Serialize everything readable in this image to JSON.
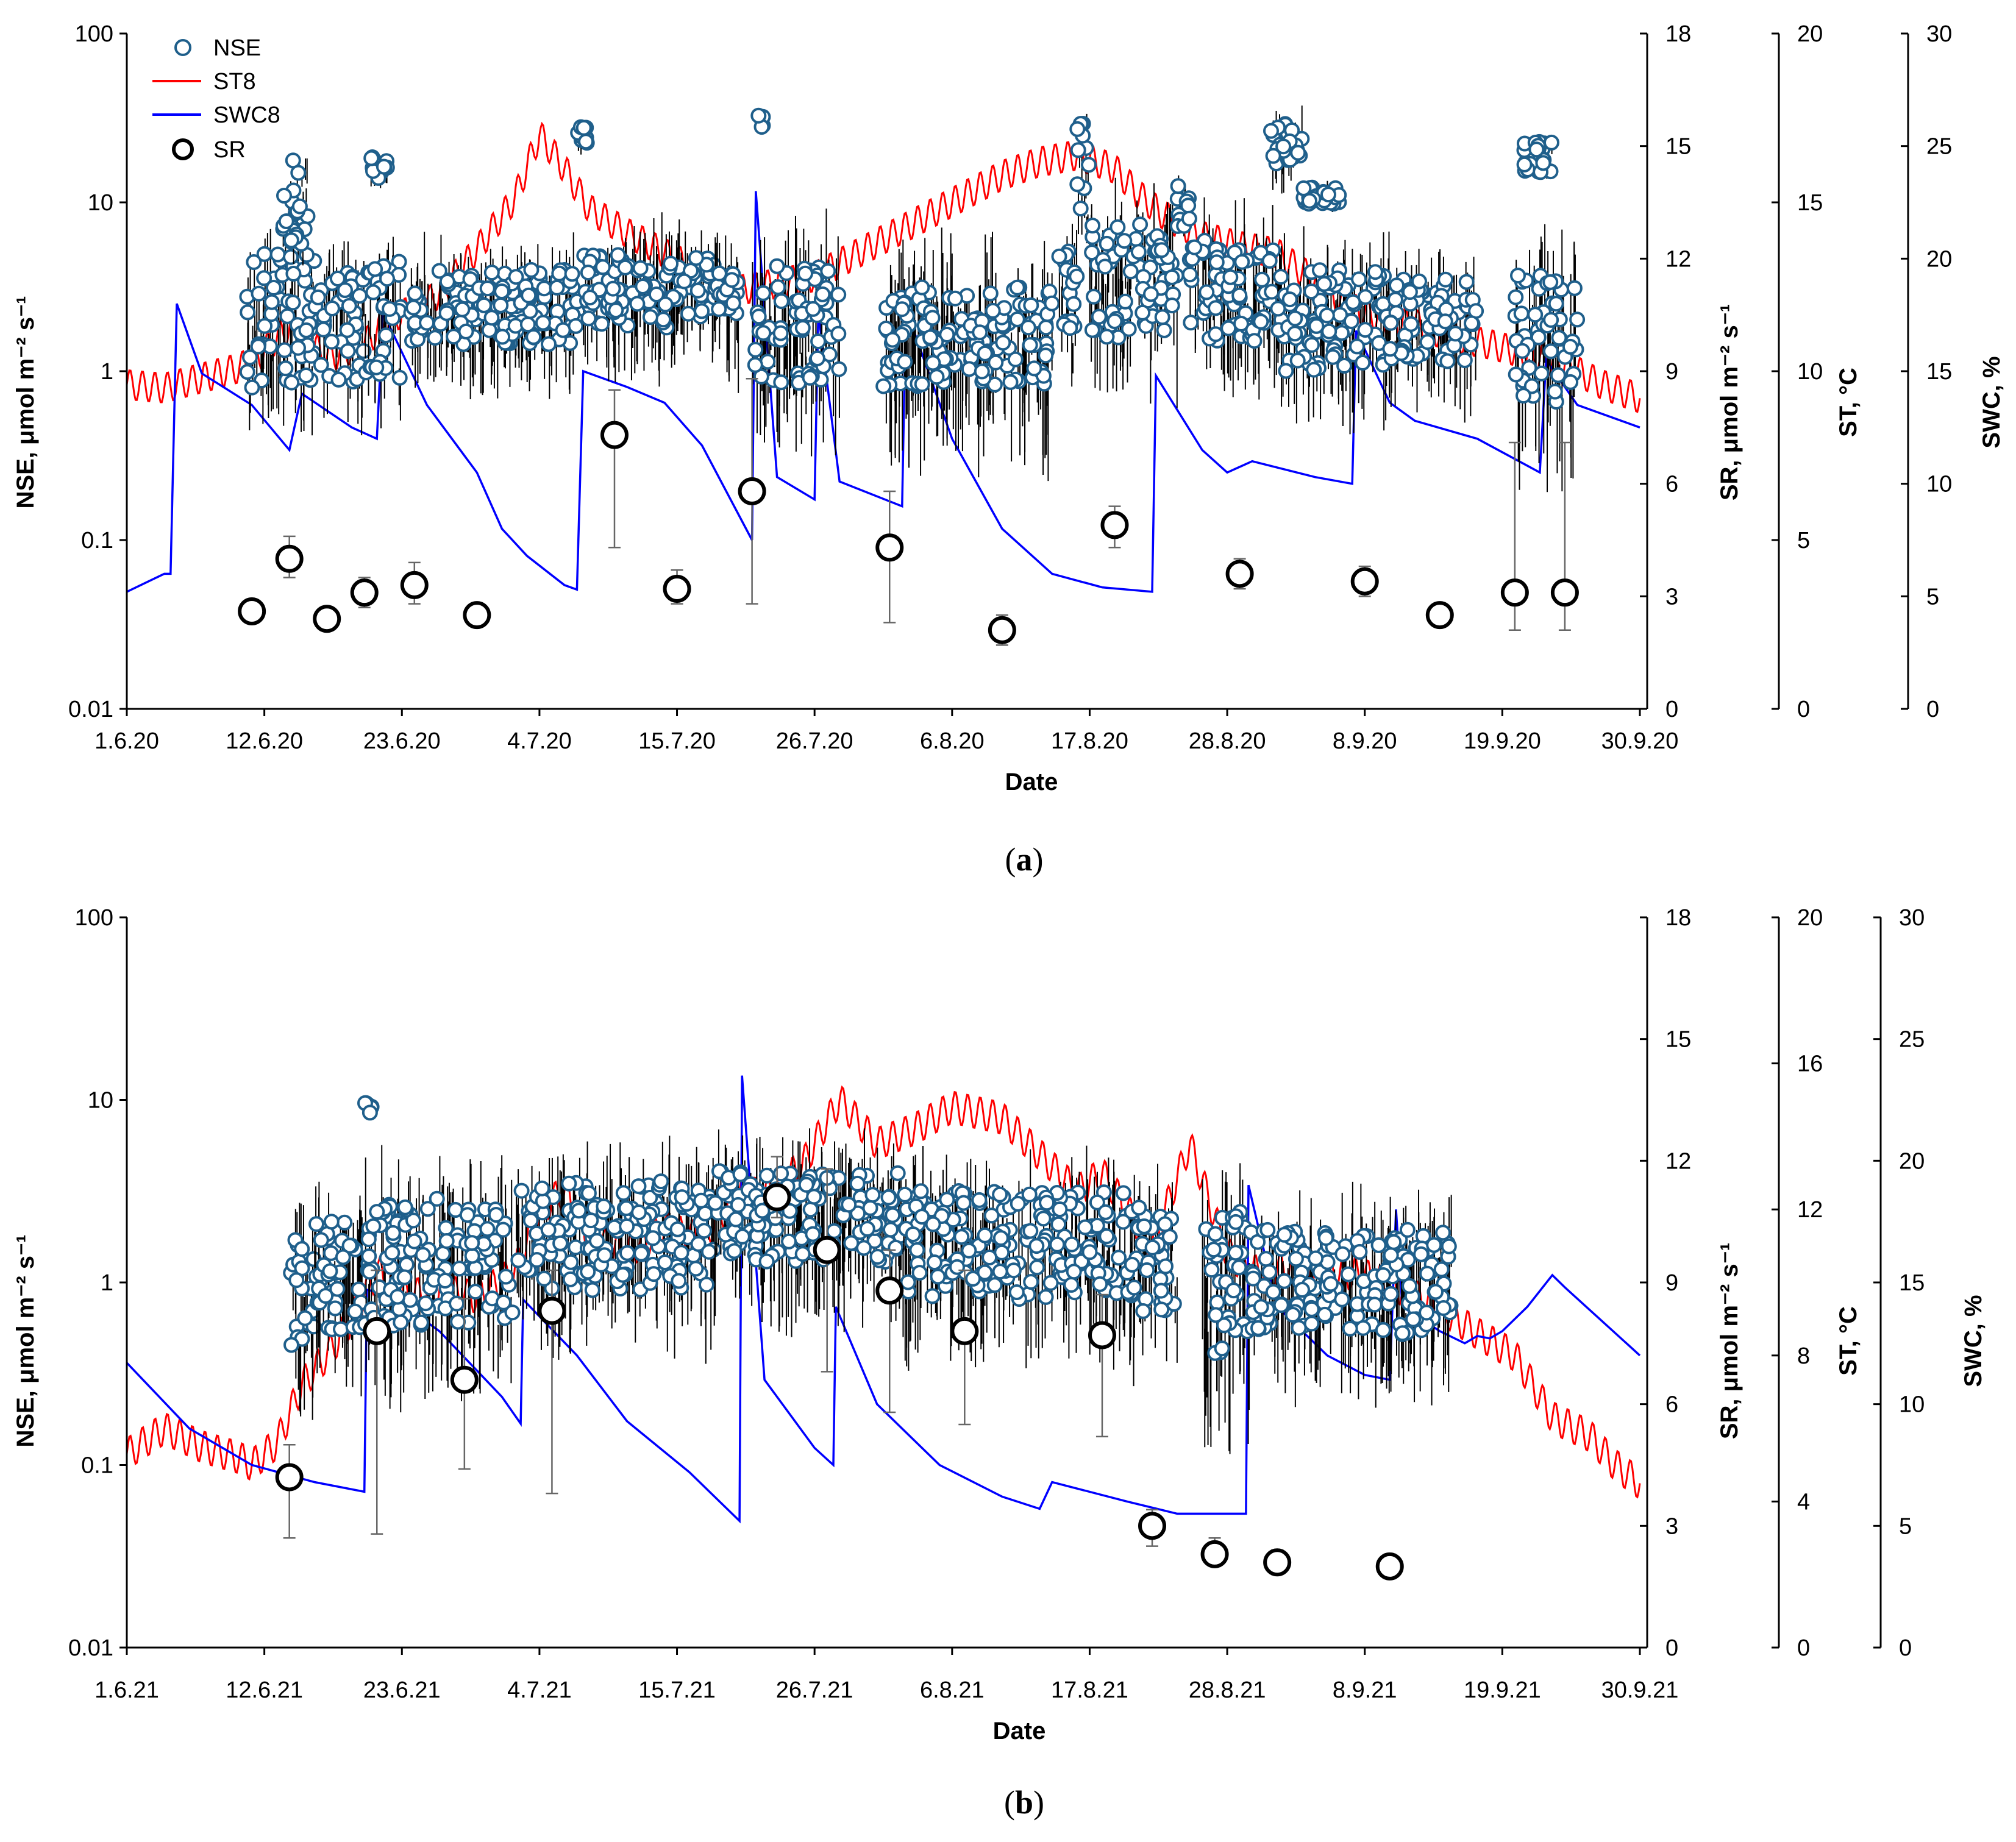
{
  "legend": {
    "nse": "NSE",
    "st": "ST8",
    "swc": "SWC8",
    "sr": "SR"
  },
  "colors": {
    "nse": "#1f5f8b",
    "st": "#ff0000",
    "swc": "#0000ff",
    "sr": "#000000"
  },
  "chart_data": [
    {
      "type": "scatter",
      "panel": "a",
      "caption": "a",
      "xlabel": "Date",
      "ylabel_left": "NSE, μmol m⁻² s⁻¹",
      "ylabel_sr": "SR, μmol m⁻² s⁻¹",
      "ylabel_st": "ST, °C",
      "ylabel_swc": "SWC, %",
      "x_ticks": [
        "1.6.20",
        "12.6.20",
        "23.6.20",
        "4.7.20",
        "15.7.20",
        "26.7.20",
        "6.8.20",
        "17.8.20",
        "28.8.20",
        "8.9.20",
        "19.9.20",
        "30.9.20"
      ],
      "xlim_days": [
        0,
        121
      ],
      "y_left": {
        "scale": "log",
        "lim": [
          0.01,
          100
        ],
        "ticks": [
          "0.01",
          "0.1",
          "1",
          "10",
          "100"
        ]
      },
      "y_sr": {
        "lim": [
          0,
          18
        ],
        "ticks": [
          "0",
          "3",
          "6",
          "9",
          "12",
          "15",
          "18"
        ]
      },
      "y_st": {
        "lim": [
          0,
          20
        ],
        "ticks": [
          "0",
          "5",
          "10",
          "15",
          "20"
        ]
      },
      "y_swc": {
        "lim": [
          0,
          30
        ],
        "ticks": [
          "0",
          "5",
          "10",
          "15",
          "20",
          "25",
          "30"
        ]
      },
      "sr": {
        "days": [
          10,
          13,
          16,
          19,
          23,
          28,
          39,
          44,
          50,
          61,
          70,
          79,
          89,
          99,
          105,
          111,
          115
        ],
        "values": [
          2.6,
          4.0,
          2.4,
          3.1,
          3.3,
          2.5,
          7.3,
          3.2,
          5.8,
          4.3,
          2.1,
          4.9,
          3.6,
          3.4,
          2.5,
          3.1,
          3.1
        ],
        "err_low": [
          0.3,
          0.5,
          0.3,
          0.4,
          0.5,
          0.3,
          3.0,
          0.4,
          3.0,
          2.0,
          0.4,
          0.6,
          0.4,
          0.4,
          0.3,
          1.0,
          1.0
        ],
        "err_high": [
          0.3,
          0.6,
          0.3,
          0.4,
          0.6,
          0.3,
          1.2,
          0.5,
          3.0,
          1.5,
          0.4,
          0.5,
          0.4,
          0.4,
          0.3,
          4.0,
          4.0
        ]
      },
      "st": {
        "days": [
          0,
          3,
          6,
          9,
          10,
          13,
          16,
          19,
          21,
          23,
          25,
          28,
          31,
          33,
          35,
          37,
          40,
          43,
          46,
          49,
          52,
          55,
          58,
          61,
          64,
          67,
          70,
          73,
          76,
          79,
          81,
          83,
          86,
          89,
          92,
          95,
          97,
          100,
          103,
          106,
          109,
          112,
          115,
          118,
          121
        ],
        "values": [
          9.6,
          9.5,
          9.8,
          10.1,
          10.3,
          11.3,
          10.4,
          10.8,
          11.6,
          11.8,
          12.3,
          13.6,
          15.1,
          17.0,
          16.0,
          14.8,
          14.1,
          13.5,
          12.9,
          12.4,
          12.6,
          12.8,
          13.4,
          14.0,
          14.6,
          15.2,
          15.8,
          16.2,
          16.4,
          16.0,
          15.2,
          14.6,
          14.0,
          13.7,
          13.5,
          12.7,
          12.0,
          11.6,
          11.4,
          11.0,
          10.8,
          10.5,
          10.2,
          9.6,
          9.2
        ]
      },
      "swc": {
        "days": [
          0,
          3,
          3.5,
          4,
          6,
          10,
          13,
          14,
          18,
          20,
          20.5,
          24,
          28,
          30,
          32,
          35,
          36,
          36.5,
          40,
          43,
          46,
          50,
          50.3,
          52,
          55,
          55.3,
          57,
          62,
          62.3,
          66,
          70,
          74,
          78,
          82,
          82.3,
          86,
          88,
          90,
          95,
          98,
          98.3,
          101,
          103,
          108,
          112,
          113,
          113.5,
          116,
          121
        ],
        "values": [
          5.2,
          6.0,
          6.0,
          18.0,
          14.9,
          13.5,
          11.5,
          14.0,
          12.5,
          12.0,
          17.6,
          13.5,
          10.5,
          8.0,
          6.8,
          5.5,
          5.3,
          15.0,
          14.3,
          13.6,
          11.7,
          7.5,
          23.0,
          10.3,
          9.3,
          17.6,
          10.1,
          9.0,
          17.8,
          12.0,
          8.0,
          6.0,
          5.4,
          5.2,
          14.8,
          11.5,
          10.5,
          11.0,
          10.3,
          10.0,
          16.8,
          13.6,
          12.8,
          12.0,
          10.8,
          10.5,
          15.5,
          13.5,
          12.5
        ]
      },
      "nse_clusters": [
        {
          "start": 9.5,
          "end": 15,
          "center": 2.0,
          "spread": 0.4,
          "err": 0.25
        },
        {
          "start": 12.5,
          "end": 14.5,
          "center": 10.0,
          "spread": 0.25,
          "err": 0.1
        },
        {
          "start": 15,
          "end": 19,
          "center": 1.8,
          "spread": 0.35,
          "err": 0.25
        },
        {
          "start": 19.5,
          "end": 21,
          "center": 16.0,
          "spread": 0.08,
          "err": 0.05
        },
        {
          "start": 19,
          "end": 22,
          "center": 2.0,
          "spread": 0.35,
          "err": 0.25
        },
        {
          "start": 22.5,
          "end": 36,
          "center": 2.4,
          "spread": 0.22,
          "err": 0.25
        },
        {
          "start": 36,
          "end": 37,
          "center": 25.0,
          "spread": 0.05,
          "err": 0.05
        },
        {
          "start": 36.5,
          "end": 47,
          "center": 3.0,
          "spread": 0.22,
          "err": 0.25
        },
        {
          "start": 47,
          "end": 49,
          "center": 2.8,
          "spread": 0.15,
          "err": 0.3
        },
        {
          "start": 50.5,
          "end": 51,
          "center": 30.0,
          "spread": 0.05,
          "err": 0.03
        },
        {
          "start": 50,
          "end": 57,
          "center": 1.9,
          "spread": 0.35,
          "err": 0.35
        },
        {
          "start": 60.5,
          "end": 74,
          "center": 1.6,
          "spread": 0.3,
          "err": 0.4
        },
        {
          "start": 74.5,
          "end": 76,
          "center": 2.6,
          "spread": 0.3,
          "err": 0.2
        },
        {
          "start": 76,
          "end": 77,
          "center": 15.0,
          "spread": 0.3,
          "err": 0.15
        },
        {
          "start": 77,
          "end": 84,
          "center": 3.5,
          "spread": 0.35,
          "err": 0.3
        },
        {
          "start": 84,
          "end": 85,
          "center": 9.0,
          "spread": 0.15,
          "err": 0.1
        },
        {
          "start": 85,
          "end": 92,
          "center": 3.0,
          "spread": 0.3,
          "err": 0.3
        },
        {
          "start": 91.5,
          "end": 94,
          "center": 22.0,
          "spread": 0.15,
          "err": 0.1
        },
        {
          "start": 94,
          "end": 97,
          "center": 11.0,
          "spread": 0.05,
          "err": 0.05
        },
        {
          "start": 92,
          "end": 101,
          "center": 2.0,
          "spread": 0.3,
          "err": 0.3
        },
        {
          "start": 101,
          "end": 108,
          "center": 2.0,
          "spread": 0.25,
          "err": 0.25
        },
        {
          "start": 111.5,
          "end": 114,
          "center": 19.0,
          "spread": 0.1,
          "err": 0.05
        },
        {
          "start": 111,
          "end": 116,
          "center": 1.5,
          "spread": 0.4,
          "err": 0.4
        }
      ]
    },
    {
      "type": "scatter",
      "panel": "b",
      "caption": "b",
      "xlabel": "Date",
      "ylabel_left": "NSE, μmol m⁻² s⁻¹",
      "ylabel_sr": "SR, μmol m⁻² s⁻¹",
      "ylabel_st": "ST, °C",
      "ylabel_swc": "SWC, %",
      "x_ticks": [
        "1.6.21",
        "12.6.21",
        "23.6.21",
        "4.7.21",
        "15.7.21",
        "26.7.21",
        "6.8.21",
        "17.8.21",
        "28.8.21",
        "8.9.21",
        "19.9.21",
        "30.9.21"
      ],
      "xlim_days": [
        0,
        121
      ],
      "y_left": {
        "scale": "log",
        "lim": [
          0.01,
          100
        ],
        "ticks": [
          "0.01",
          "0.1",
          "1",
          "10",
          "100"
        ]
      },
      "y_sr": {
        "lim": [
          0,
          18
        ],
        "ticks": [
          "0",
          "3",
          "6",
          "9",
          "12",
          "15",
          "18"
        ]
      },
      "y_st": {
        "lim": [
          0,
          20
        ],
        "ticks": [
          "0",
          "4",
          "8",
          "12",
          "16",
          "20"
        ]
      },
      "y_swc": {
        "lim": [
          0,
          30
        ],
        "ticks": [
          "0",
          "5",
          "10",
          "15",
          "20",
          "25",
          "30"
        ]
      },
      "sr": {
        "days": [
          13,
          20,
          27,
          34,
          52,
          56,
          61,
          67,
          78,
          82,
          87,
          92,
          101
        ],
        "values": [
          4.2,
          7.8,
          6.6,
          8.3,
          11.1,
          9.8,
          8.8,
          7.8,
          7.7,
          3.0,
          2.3,
          2.1,
          2.0
        ],
        "err_low": [
          1.5,
          5.0,
          2.2,
          4.5,
          0.5,
          3.0,
          3.0,
          2.3,
          2.5,
          0.5,
          0.3,
          0.3,
          0.3
        ],
        "err_high": [
          0.8,
          1.5,
          2.0,
          1.0,
          1.0,
          2.0,
          1.0,
          1.5,
          1.0,
          0.4,
          0.4,
          0.3,
          0.3
        ]
      },
      "st": {
        "days": [
          0,
          3,
          6,
          9,
          10,
          12,
          14,
          16,
          18,
          20,
          22,
          25,
          28,
          31,
          33,
          35,
          37,
          40,
          43,
          46,
          49,
          51,
          54,
          57,
          60,
          63,
          66,
          70,
          73,
          76,
          78,
          80,
          82,
          85,
          88,
          90,
          93,
          96,
          99,
          102,
          105,
          108,
          111,
          114,
          117,
          119,
          121
        ],
        "values": [
          5.3,
          6.0,
          5.5,
          5.2,
          5.0,
          5.6,
          7.2,
          8.0,
          9.0,
          10.3,
          9.6,
          9.8,
          9.6,
          10.3,
          12.0,
          12.5,
          11.2,
          10.8,
          11.5,
          11.2,
          12.5,
          12.4,
          13.2,
          15.0,
          13.8,
          14.2,
          14.8,
          14.5,
          13.5,
          12.5,
          13.0,
          12.0,
          11.0,
          13.8,
          10.8,
          10.3,
          10.4,
          10.3,
          10.2,
          9.8,
          9.3,
          8.6,
          8.0,
          6.3,
          5.8,
          5.0,
          4.5
        ]
      },
      "swc": {
        "days": [
          0,
          5,
          10,
          15,
          19,
          19.2,
          21,
          25,
          30,
          31.5,
          31.7,
          36,
          40,
          45,
          49,
          49.2,
          51,
          55,
          56.5,
          56.7,
          60,
          65,
          70,
          73,
          74,
          80,
          84,
          87,
          89.5,
          89.7,
          92,
          96,
          99,
          101,
          101.5,
          102,
          105,
          107,
          108,
          109,
          110,
          112,
          114,
          115,
          121
        ],
        "values": [
          11.7,
          9.0,
          7.5,
          6.8,
          6.4,
          14.7,
          14.5,
          13.0,
          10.3,
          9.2,
          14.3,
          12.0,
          9.3,
          7.2,
          5.2,
          23.5,
          11.0,
          8.2,
          7.5,
          14.0,
          10.0,
          7.5,
          6.2,
          5.7,
          6.8,
          6.0,
          5.5,
          5.5,
          5.5,
          19.0,
          14.0,
          12.0,
          11.2,
          11.0,
          18.0,
          14.0,
          13.0,
          12.5,
          12.8,
          12.7,
          13.0,
          14.0,
          15.3,
          14.8,
          12.0
        ]
      },
      "nse_clusters": [
        {
          "start": 13,
          "end": 15,
          "center": 0.9,
          "spread": 0.3,
          "err": 0.3
        },
        {
          "start": 15,
          "end": 19,
          "center": 1.1,
          "spread": 0.3,
          "err": 0.3
        },
        {
          "start": 19,
          "end": 19.6,
          "center": 9.0,
          "spread": 0.03,
          "err": 0.03
        },
        {
          "start": 19,
          "end": 31,
          "center": 1.3,
          "spread": 0.35,
          "err": 0.35
        },
        {
          "start": 31,
          "end": 47,
          "center": 1.8,
          "spread": 0.3,
          "err": 0.3
        },
        {
          "start": 47,
          "end": 62,
          "center": 2.3,
          "spread": 0.25,
          "err": 0.3
        },
        {
          "start": 62,
          "end": 80,
          "center": 1.6,
          "spread": 0.3,
          "err": 0.3
        },
        {
          "start": 80,
          "end": 84,
          "center": 1.3,
          "spread": 0.3,
          "err": 0.3
        },
        {
          "start": 86,
          "end": 90,
          "center": 1.0,
          "spread": 0.4,
          "err": 0.4
        },
        {
          "start": 90,
          "end": 106,
          "center": 1.0,
          "spread": 0.3,
          "err": 0.3
        }
      ]
    }
  ]
}
